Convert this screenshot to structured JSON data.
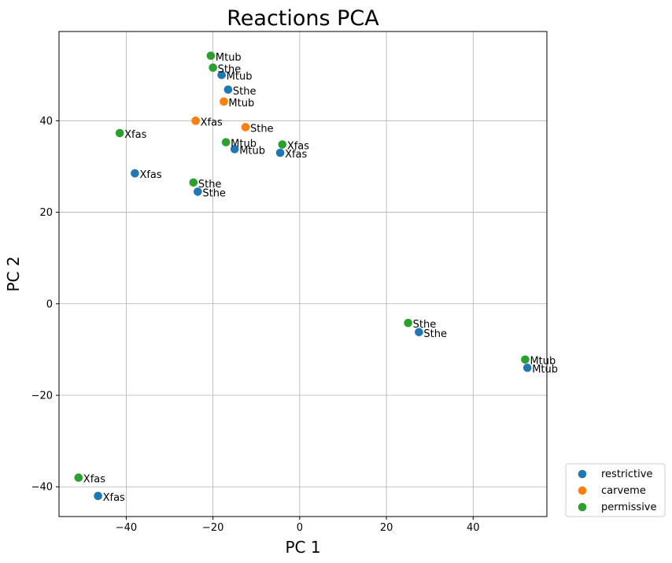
{
  "chart_data": {
    "type": "scatter",
    "title": "Reactions PCA",
    "xlabel": "PC 1",
    "ylabel": "PC 2",
    "xlim": [
      -55.5,
      57
    ],
    "ylim": [
      -46.5,
      59.5
    ],
    "xticks": [
      -40,
      -20,
      0,
      20,
      40
    ],
    "yticks": [
      -40,
      -20,
      0,
      20,
      40
    ],
    "grid": true,
    "legend_position": "outside-bottom-right",
    "series": [
      {
        "name": "restrictive",
        "color": "#1f77b4",
        "points": [
          {
            "x": -18.0,
            "y": 50.0,
            "label": "Mtub"
          },
          {
            "x": -16.5,
            "y": 46.8,
            "label": "Sthe"
          },
          {
            "x": -15.0,
            "y": 33.8,
            "label": "Mtub"
          },
          {
            "x": -4.5,
            "y": 33.0,
            "label": "Xfas"
          },
          {
            "x": -38.0,
            "y": 28.5,
            "label": "Xfas"
          },
          {
            "x": -23.5,
            "y": 24.5,
            "label": "Sthe"
          },
          {
            "x": 27.5,
            "y": -6.2,
            "label": "Sthe"
          },
          {
            "x": 52.5,
            "y": -14.0,
            "label": "Mtub"
          },
          {
            "x": -46.5,
            "y": -42.0,
            "label": "Xfas"
          }
        ]
      },
      {
        "name": "carveme",
        "color": "#ff7f0e",
        "points": [
          {
            "x": -17.5,
            "y": 44.2,
            "label": "Mtub"
          },
          {
            "x": -24.0,
            "y": 40.0,
            "label": "Xfas"
          },
          {
            "x": -12.5,
            "y": 38.6,
            "label": "Sthe"
          }
        ]
      },
      {
        "name": "permissive",
        "color": "#2ca02c",
        "points": [
          {
            "x": -20.5,
            "y": 54.2,
            "label": "Mtub"
          },
          {
            "x": -20.0,
            "y": 51.6,
            "label": "Sthe"
          },
          {
            "x": -41.5,
            "y": 37.3,
            "label": "Xfas"
          },
          {
            "x": -17.0,
            "y": 35.3,
            "label": "Mtub"
          },
          {
            "x": -4.0,
            "y": 34.8,
            "label": "Xfas"
          },
          {
            "x": -24.5,
            "y": 26.5,
            "label": "Sthe"
          },
          {
            "x": 25.0,
            "y": -4.2,
            "label": "Sthe"
          },
          {
            "x": 52.0,
            "y": -12.2,
            "label": "Mtub"
          },
          {
            "x": -51.0,
            "y": -38.0,
            "label": "Xfas"
          }
        ]
      }
    ]
  }
}
